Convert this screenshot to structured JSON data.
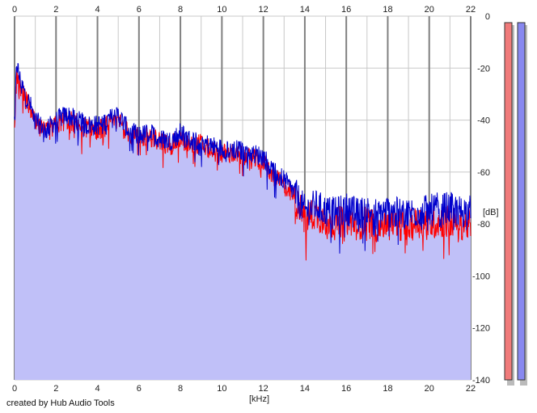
{
  "credit": "created by Hub Audio Tools",
  "colors": {
    "background": "#ffffff",
    "plot_background": "#ffffff",
    "fill": "#c0c0f8",
    "left_line": "#ff0000",
    "right_line": "#0000cc",
    "grid_minor": "#c8c8c8",
    "grid_major": "#808080",
    "meter_left": "#f07a7a",
    "meter_right": "#8888f0"
  },
  "chart_data": {
    "type": "area",
    "xlabel": "[kHz]",
    "ylabel": "[dB]",
    "xlim": [
      0,
      22
    ],
    "ylim": [
      -140,
      0
    ],
    "x_ticks": [
      0,
      2,
      4,
      6,
      8,
      10,
      12,
      14,
      16,
      18,
      20,
      22
    ],
    "y_ticks": [
      0,
      -20,
      -40,
      -60,
      -80,
      -100,
      -120,
      -140
    ],
    "y_tick_labels": [
      "0",
      "-20",
      "-40",
      "-60",
      "-80",
      "-100",
      "-120",
      "-140"
    ],
    "x_minor_grid_step": 1,
    "grid": true,
    "series": [
      {
        "color": "#ff0000",
        "x": [
          0,
          0.1,
          0.25,
          0.5,
          0.75,
          1,
          1.5,
          2,
          2.5,
          3,
          3.5,
          4,
          4.5,
          5,
          5.5,
          6,
          6.5,
          7,
          7.5,
          8,
          8.5,
          9,
          9.5,
          10,
          10.5,
          11,
          11.5,
          12,
          12.5,
          13,
          13.5,
          14,
          14.5,
          15,
          15.5,
          16,
          16.5,
          17,
          17.5,
          18,
          18.5,
          19,
          19.5,
          20,
          20.5,
          21,
          21.5,
          22
        ],
        "y": [
          -44,
          -22,
          -26,
          -32,
          -35,
          -42,
          -45,
          -42,
          -40,
          -41,
          -43,
          -44,
          -42,
          -40,
          -45,
          -47,
          -46,
          -48,
          -50,
          -47,
          -50,
          -49,
          -52,
          -53,
          -53,
          -54,
          -55,
          -56,
          -62,
          -65,
          -70,
          -78,
          -76,
          -79,
          -80,
          -78,
          -80,
          -79,
          -81,
          -79,
          -80,
          -81,
          -79,
          -80,
          -79,
          -79,
          -80,
          -80
        ]
      },
      {
        "color": "#0000cc",
        "x": [
          0,
          0.1,
          0.25,
          0.5,
          0.75,
          1,
          1.5,
          2,
          2.5,
          3,
          3.5,
          4,
          4.5,
          5,
          5.5,
          6,
          6.5,
          7,
          7.5,
          8,
          8.5,
          9,
          9.5,
          10,
          10.5,
          11,
          11.5,
          12,
          12.5,
          13,
          13.5,
          14,
          14.5,
          15,
          15.5,
          16,
          16.5,
          17,
          17.5,
          18,
          18.5,
          19,
          19.5,
          20,
          20.5,
          21,
          21.5,
          22
        ],
        "y": [
          -40,
          -18,
          -24,
          -30,
          -34,
          -40,
          -44,
          -40,
          -38,
          -40,
          -42,
          -42,
          -40,
          -38,
          -44,
          -46,
          -45,
          -47,
          -48,
          -45,
          -48,
          -48,
          -50,
          -51,
          -51,
          -52,
          -53,
          -54,
          -60,
          -63,
          -68,
          -75,
          -73,
          -75,
          -76,
          -74,
          -76,
          -75,
          -76,
          -75,
          -76,
          -76,
          -75,
          -75,
          -74,
          -74,
          -75,
          -75
        ]
      }
    ]
  }
}
